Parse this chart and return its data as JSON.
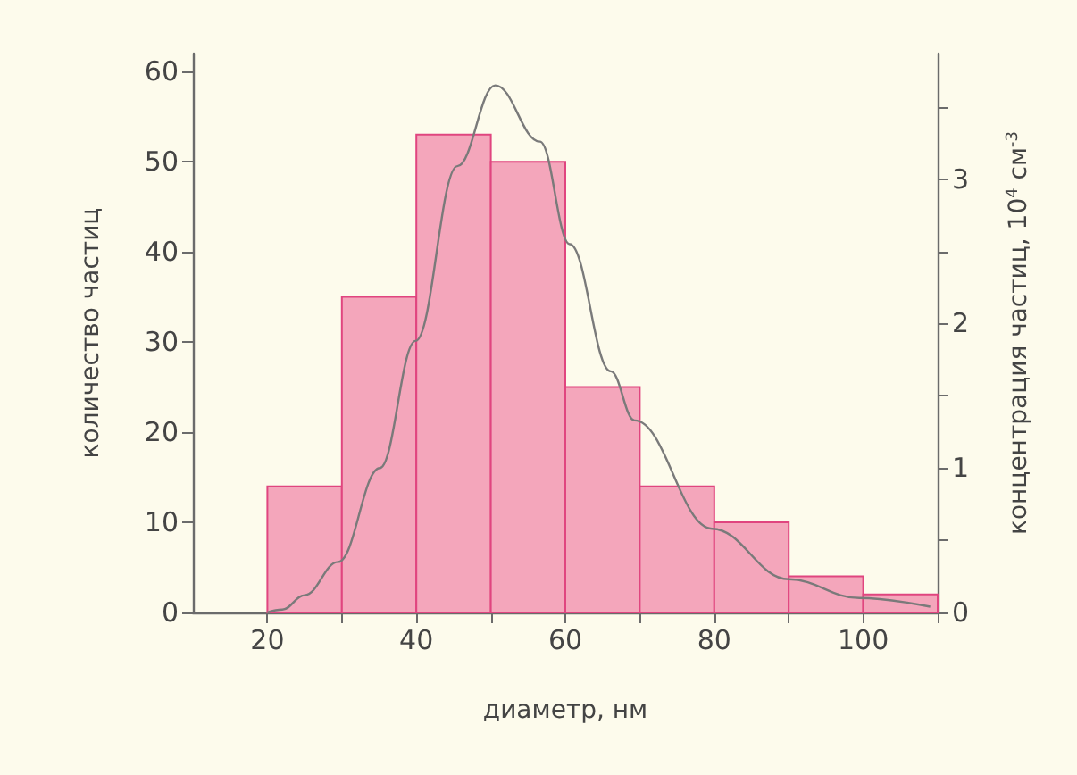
{
  "chart_data": {
    "type": "histogram",
    "xlabel": "диаметр, нм",
    "ylabel": "количество частиц",
    "y2label": "концентрация частиц, 10$^{4}$ см$^{-3}$",
    "bins": [
      20,
      30,
      40,
      50,
      60,
      70,
      80,
      90,
      100,
      110
    ],
    "values": [
      14,
      35,
      53,
      50,
      25,
      14,
      10,
      4,
      2
    ],
    "color": "#f4a6bb",
    "series": [
      {
        "type": "line",
        "axis": "y2",
        "color": "#7a7a7a",
        "x": [
          20,
          22,
          25,
          29.5,
          35.1,
          39.9,
          45.5,
          50.6,
          56.6,
          60.6,
          66.1,
          69.3,
          79.7,
          90,
          99.5,
          109
        ],
        "values": [
          0,
          0.02,
          0.12,
          0.35,
          1.0,
          1.88,
          3.09,
          3.65,
          3.26,
          2.55,
          1.67,
          1.33,
          0.58,
          0.23,
          0.1,
          0.04
        ]
      }
    ],
    "xlim": [
      10,
      110
    ],
    "xticks": [
      20,
      {
        "value": 30,
        "label": null
      },
      40,
      {
        "value": 50,
        "label": null
      },
      60,
      {
        "value": 70,
        "label": null
      },
      80,
      {
        "value": 90,
        "label": null
      },
      100,
      {
        "value": 110,
        "label": null
      }
    ],
    "ylim": [
      0,
      62
    ],
    "yticks": [
      0,
      10,
      20,
      30,
      40,
      50,
      60
    ],
    "y2lim": [
      0,
      3.87
    ],
    "y2ticks": [
      0,
      {
        "value": 0.5,
        "label": null
      },
      1,
      {
        "value": 1.5,
        "label": null
      },
      2,
      {
        "value": 2.5,
        "label": null
      },
      3,
      {
        "value": 3.5,
        "label": null
      }
    ],
    "grid": false,
    "marker": "none"
  }
}
